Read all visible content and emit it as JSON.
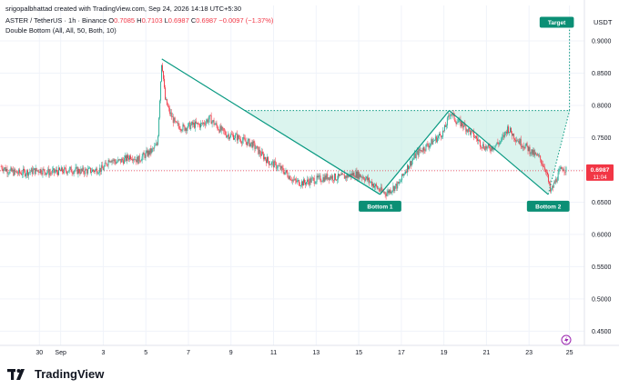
{
  "header": {
    "published_by": "srigopalbhattad created with TradingView.com, Sep 24, 2026 14:18 UTC+5:30"
  },
  "symbol": {
    "name": "ASTER / TetherUS · 1h · Binance",
    "open_label": "O",
    "open": "0.7085",
    "high_label": "H",
    "high": "0.7103",
    "low_label": "L",
    "low": "0.6987",
    "close_label": "C",
    "close": "0.6987",
    "change": "−0.0097 (−1.37%)"
  },
  "indicator": "Double Bottom (All, All, 50, Both, 10)",
  "currency": "USDT",
  "last_price": {
    "value": "0.6987",
    "countdown": "11:04"
  },
  "brand": "TradingView",
  "colors": {
    "up": "#22ab94",
    "down": "#f23645",
    "pattern_line": "#089981",
    "pattern_fill": "#bdebe0",
    "label_bg": "#0b8f75",
    "target_line": "#089981"
  },
  "chart_data": {
    "type": "candlestick",
    "title": "ASTER / TetherUS · 1h · Binance",
    "y_axis": {
      "ticks": [
        0.45,
        0.5,
        0.55,
        0.6,
        0.65,
        0.7,
        0.75,
        0.8,
        0.85,
        0.9
      ],
      "tick_labels": [
        "0.4500",
        "0.5000",
        "0.5500",
        "0.6000",
        "0.6500",
        "0.7000",
        "0.7500",
        "0.8000",
        "0.8500",
        "0.9000"
      ],
      "range": [
        0.428,
        0.955
      ]
    },
    "x_axis": {
      "ticks": [
        {
          "day": 30,
          "label": "30"
        },
        {
          "day": 31,
          "label": "Sep"
        },
        {
          "day": 33,
          "label": "3"
        },
        {
          "day": 35,
          "label": "5"
        },
        {
          "day": 37,
          "label": "7"
        },
        {
          "day": 39,
          "label": "9"
        },
        {
          "day": 41,
          "label": "11"
        },
        {
          "day": 43,
          "label": "13"
        },
        {
          "day": 45,
          "label": "15"
        },
        {
          "day": 47,
          "label": "17"
        },
        {
          "day": 49,
          "label": "19"
        },
        {
          "day": 51,
          "label": "21"
        },
        {
          "day": 53,
          "label": "23"
        },
        {
          "day": 54.9,
          "label": "25"
        }
      ],
      "range": [
        28.15,
        55.6
      ],
      "note": "days counted from Aug 0"
    },
    "price_path": [
      [
        28.2,
        0.705
      ],
      [
        28.6,
        0.698
      ],
      [
        29.0,
        0.695
      ],
      [
        29.5,
        0.697
      ],
      [
        30.0,
        0.7
      ],
      [
        30.5,
        0.696
      ],
      [
        31.0,
        0.698
      ],
      [
        31.5,
        0.7
      ],
      [
        32.0,
        0.698
      ],
      [
        32.5,
        0.699
      ],
      [
        33.0,
        0.702
      ],
      [
        33.3,
        0.718
      ],
      [
        33.6,
        0.712
      ],
      [
        34.0,
        0.716
      ],
      [
        34.3,
        0.722
      ],
      [
        34.6,
        0.715
      ],
      [
        35.0,
        0.724
      ],
      [
        35.3,
        0.73
      ],
      [
        35.55,
        0.74
      ],
      [
        35.75,
        0.872
      ],
      [
        35.9,
        0.81
      ],
      [
        36.1,
        0.79
      ],
      [
        36.4,
        0.77
      ],
      [
        36.8,
        0.765
      ],
      [
        37.2,
        0.77
      ],
      [
        37.6,
        0.77
      ],
      [
        38.0,
        0.78
      ],
      [
        38.4,
        0.765
      ],
      [
        38.8,
        0.755
      ],
      [
        39.2,
        0.752
      ],
      [
        39.6,
        0.745
      ],
      [
        40.0,
        0.74
      ],
      [
        40.4,
        0.725
      ],
      [
        40.8,
        0.712
      ],
      [
        41.2,
        0.705
      ],
      [
        41.6,
        0.695
      ],
      [
        42.0,
        0.682
      ],
      [
        42.4,
        0.68
      ],
      [
        42.8,
        0.684
      ],
      [
        43.2,
        0.686
      ],
      [
        43.6,
        0.69
      ],
      [
        44.0,
        0.688
      ],
      [
        44.4,
        0.69
      ],
      [
        44.8,
        0.694
      ],
      [
        45.2,
        0.69
      ],
      [
        45.6,
        0.68
      ],
      [
        46.0,
        0.668
      ],
      [
        46.3,
        0.664
      ],
      [
        46.6,
        0.672
      ],
      [
        46.9,
        0.678
      ],
      [
        47.2,
        0.7
      ],
      [
        47.5,
        0.715
      ],
      [
        47.8,
        0.728
      ],
      [
        48.1,
        0.735
      ],
      [
        48.4,
        0.742
      ],
      [
        48.7,
        0.75
      ],
      [
        49.0,
        0.76
      ],
      [
        49.3,
        0.79
      ],
      [
        49.6,
        0.775
      ],
      [
        49.9,
        0.77
      ],
      [
        50.2,
        0.76
      ],
      [
        50.5,
        0.75
      ],
      [
        50.8,
        0.738
      ],
      [
        51.1,
        0.733
      ],
      [
        51.4,
        0.738
      ],
      [
        51.7,
        0.745
      ],
      [
        52.0,
        0.765
      ],
      [
        52.3,
        0.752
      ],
      [
        52.6,
        0.742
      ],
      [
        52.9,
        0.735
      ],
      [
        53.2,
        0.725
      ],
      [
        53.5,
        0.718
      ],
      [
        53.8,
        0.7
      ],
      [
        54.0,
        0.665
      ],
      [
        54.2,
        0.68
      ],
      [
        54.4,
        0.695
      ],
      [
        54.6,
        0.705
      ],
      [
        54.75,
        0.699
      ]
    ],
    "pattern": {
      "points": [
        [
          35.75,
          0.872
        ],
        [
          46.0,
          0.662
        ],
        [
          49.25,
          0.792
        ],
        [
          53.9,
          0.662
        ]
      ],
      "neckline": {
        "value": 0.792,
        "from": 39.6,
        "to": 54.9
      },
      "target": {
        "value": 0.929,
        "day": 54.9
      },
      "labels": [
        {
          "text": "Bottom 1",
          "day": 46.0,
          "value": 0.662
        },
        {
          "text": "Bottom 2",
          "day": 53.9,
          "value": 0.662
        },
        {
          "text": "Target",
          "day": 54.9,
          "value": 0.929
        }
      ]
    },
    "last_price_line": 0.6987
  }
}
